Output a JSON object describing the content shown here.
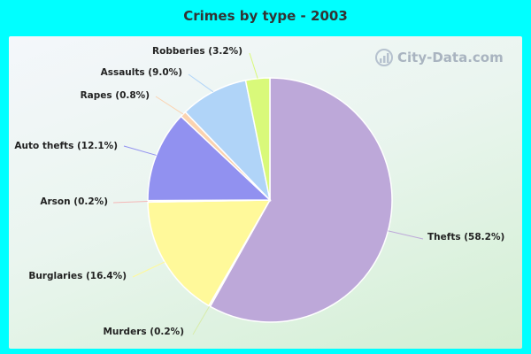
{
  "chart_data": {
    "type": "pie",
    "title": "Crimes by type - 2003",
    "slices": [
      {
        "label": "Thefts (58.2%)",
        "value": 58.2,
        "color": "#bda8d9"
      },
      {
        "label": "Murders (0.2%)",
        "value": 0.2,
        "color": "#d8ecaa"
      },
      {
        "label": "Burglaries (16.4%)",
        "value": 16.4,
        "color": "#fff99a"
      },
      {
        "label": "Arson (0.2%)",
        "value": 0.2,
        "color": "#f4b7b7"
      },
      {
        "label": "Auto thefts (12.1%)",
        "value": 12.1,
        "color": "#9191f0"
      },
      {
        "label": "Rapes (0.8%)",
        "value": 0.8,
        "color": "#fbd3b0"
      },
      {
        "label": "Assaults (9.0%)",
        "value": 9.0,
        "color": "#b0d4f8"
      },
      {
        "label": "Robberies (3.2%)",
        "value": 3.2,
        "color": "#d9f97a"
      }
    ]
  },
  "watermark": "City-Data.com"
}
